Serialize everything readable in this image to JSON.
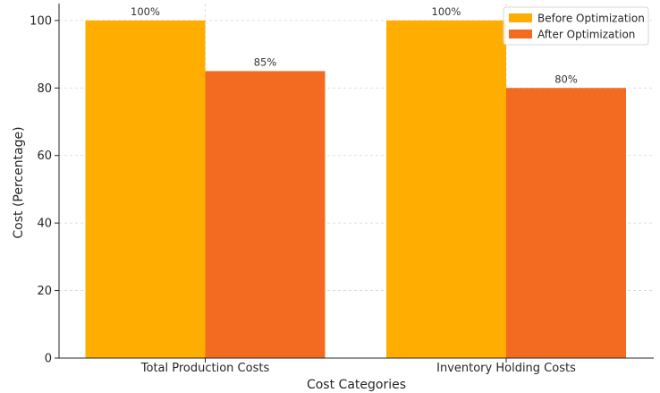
{
  "chart_data": {
    "type": "bar",
    "title": "",
    "xlabel": "Cost Categories",
    "ylabel": "Cost (Percentage)",
    "categories": [
      "Total Production Costs",
      "Inventory Holding Costs"
    ],
    "series": [
      {
        "name": "Before Optimization",
        "values": [
          100,
          100
        ],
        "labels": [
          "100%",
          "100%"
        ],
        "color": "#FFAE00"
      },
      {
        "name": "After Optimization",
        "values": [
          85,
          80
        ],
        "labels": [
          "85%",
          "80%"
        ],
        "color": "#F26B21"
      }
    ],
    "ylim": [
      0,
      105
    ],
    "yticks": [
      0,
      20,
      40,
      60,
      80,
      100
    ],
    "grid": true,
    "legend_position": "top-right"
  }
}
